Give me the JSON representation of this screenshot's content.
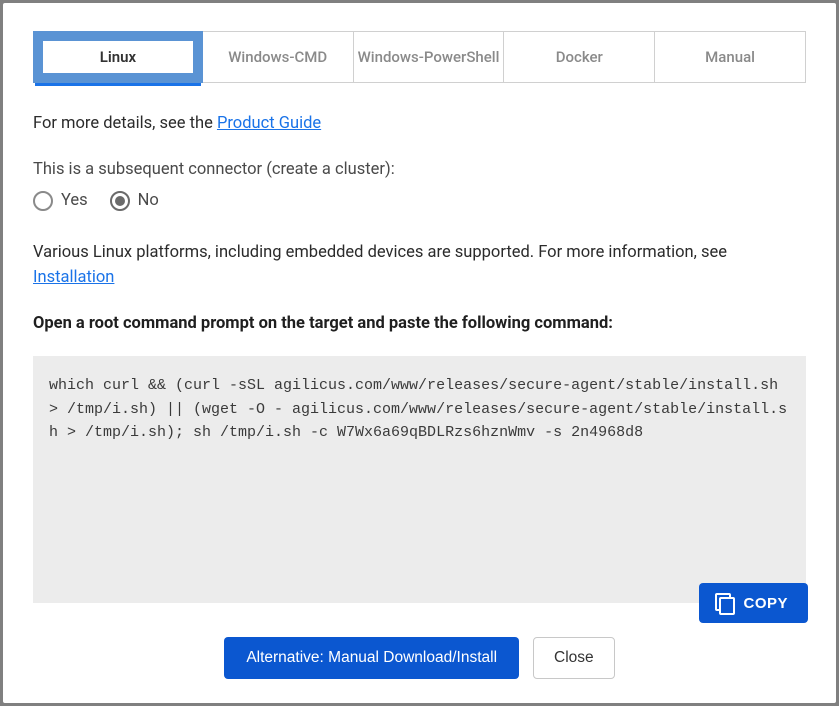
{
  "tabs": [
    {
      "label": "Linux",
      "active": true
    },
    {
      "label": "Windows-CMD",
      "active": false
    },
    {
      "label": "Windows-PowerShell",
      "active": false
    },
    {
      "label": "Docker",
      "active": false
    },
    {
      "label": "Manual",
      "active": false
    }
  ],
  "details_prefix": "For more details, see the ",
  "details_link": "Product Guide",
  "cluster_label": "This is a subsequent connector (create a cluster):",
  "radio_yes": "Yes",
  "radio_no": "No",
  "radio_selected": "no",
  "platforms_prefix": "Various Linux platforms, including embedded devices are supported. For more information, see ",
  "platforms_link": "Installation",
  "instruction": "Open a root command prompt on the target and paste the following command:",
  "command": "which curl && (curl -sSL agilicus.com/www/releases/secure-agent/stable/install.sh > /tmp/i.sh) || (wget -O - agilicus.com/www/releases/secure-agent/stable/install.sh > /tmp/i.sh); sh /tmp/i.sh -c W7Wx6a69qBDLRzs6hznWmv -s 2n4968d8",
  "copy_label": "COPY",
  "alt_button": "Alternative: Manual Download/Install",
  "close_button": "Close",
  "colors": {
    "accent": "#0b57d0",
    "tab_active_border": "#5a93d4",
    "link": "#1a73e8",
    "code_bg": "#ececec",
    "page_bg": "#808080"
  }
}
